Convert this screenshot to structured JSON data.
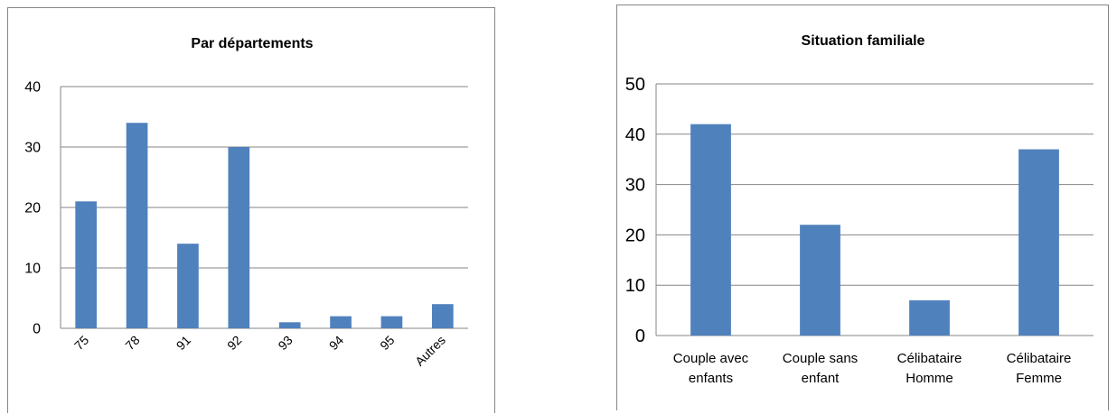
{
  "chart_data": [
    {
      "type": "bar",
      "title": "Par départements",
      "categories": [
        "75",
        "78",
        "91",
        "92",
        "93",
        "94",
        "95",
        "Autres"
      ],
      "values": [
        21,
        34,
        14,
        30,
        1,
        2,
        2,
        4
      ],
      "ylim": [
        0,
        40
      ],
      "yticks": [
        0,
        10,
        20,
        30,
        40
      ],
      "xlabel": "",
      "ylabel": "",
      "grid": true,
      "bar_color": "#4f81bd",
      "grid_color": "#868686"
    },
    {
      "type": "bar",
      "title": "Situation familiale",
      "categories": [
        "Couple avec enfants",
        "Couple sans enfant",
        "Célibataire Homme",
        "Célibataire Femme"
      ],
      "category_lines": [
        [
          "Couple avec",
          "enfants"
        ],
        [
          "Couple sans",
          "enfant"
        ],
        [
          "Célibataire",
          "Homme"
        ],
        [
          "Célibataire",
          "Femme"
        ]
      ],
      "values": [
        42,
        22,
        7,
        37
      ],
      "ylim": [
        0,
        50
      ],
      "yticks": [
        0,
        10,
        20,
        30,
        40,
        50
      ],
      "xlabel": "",
      "ylabel": "",
      "grid": true,
      "bar_color": "#4f81bd",
      "grid_color": "#868686"
    }
  ]
}
